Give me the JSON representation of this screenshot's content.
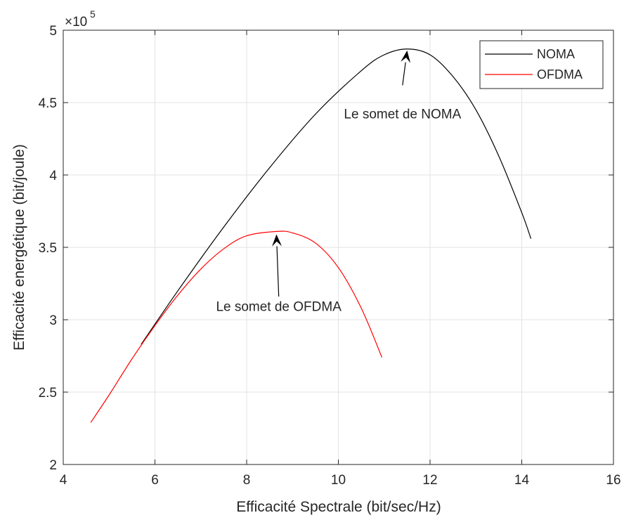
{
  "chart_data": {
    "type": "line",
    "title": "",
    "xlabel": "Efficacité Spectrale (bit/sec/Hz)",
    "ylabel": "Efficacité energétique (bit/joule)",
    "xlim": [
      4,
      16
    ],
    "ylim": [
      2,
      5
    ],
    "x_ticks": [
      4,
      6,
      8,
      10,
      12,
      14,
      16
    ],
    "y_ticks": [
      2,
      2.5,
      3,
      3.5,
      4,
      4.5,
      5
    ],
    "x_tick_labels": [
      "4",
      "6",
      "8",
      "10",
      "12",
      "14",
      "16"
    ],
    "y_tick_labels": [
      "2",
      "2.5",
      "3",
      "3.5",
      "4",
      "4.5",
      "5"
    ],
    "y_exponent": {
      "base": "×10",
      "power": "5"
    },
    "grid": true,
    "legend_position": "top-right",
    "series": [
      {
        "name": "NOMA",
        "color": "#000000",
        "points": [
          [
            5.7,
            2.83
          ],
          [
            6.5,
            3.2
          ],
          [
            7.5,
            3.64
          ],
          [
            8.5,
            4.05
          ],
          [
            9.5,
            4.42
          ],
          [
            10.5,
            4.72
          ],
          [
            11.0,
            4.83
          ],
          [
            11.5,
            4.87
          ],
          [
            12.0,
            4.83
          ],
          [
            12.5,
            4.68
          ],
          [
            13.0,
            4.45
          ],
          [
            13.5,
            4.13
          ],
          [
            14.0,
            3.74
          ],
          [
            14.2,
            3.56
          ]
        ]
      },
      {
        "name": "OFDMA",
        "color": "#ff0000",
        "points": [
          [
            4.6,
            2.29
          ],
          [
            5.0,
            2.48
          ],
          [
            5.5,
            2.73
          ],
          [
            6.0,
            2.96
          ],
          [
            6.5,
            3.17
          ],
          [
            7.0,
            3.35
          ],
          [
            7.5,
            3.49
          ],
          [
            8.0,
            3.58
          ],
          [
            8.65,
            3.61
          ],
          [
            9.0,
            3.6
          ],
          [
            9.5,
            3.53
          ],
          [
            10.0,
            3.36
          ],
          [
            10.5,
            3.08
          ],
          [
            10.95,
            2.74
          ]
        ]
      }
    ],
    "annotations": [
      {
        "text": "Le somet de NOMA",
        "arrow_from": [
          11.4,
          4.62
        ],
        "arrow_to": [
          11.5,
          4.86
        ],
        "text_at": [
          11.4,
          4.39
        ]
      },
      {
        "text": "Le somet de OFDMA",
        "arrow_from": [
          8.7,
          3.16
        ],
        "arrow_to": [
          8.65,
          3.59
        ],
        "text_at": [
          8.7,
          3.06
        ]
      }
    ]
  }
}
